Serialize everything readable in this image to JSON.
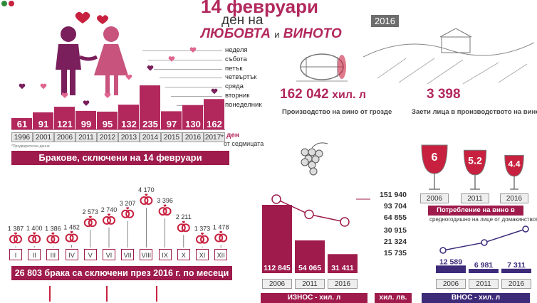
{
  "header": {
    "title_line1": "14 февруари",
    "title_line2": "ден на",
    "title_love": "ЛЮБОВТА",
    "title_and": "и",
    "title_wine": "ВИНОТО",
    "year_badge": "2016"
  },
  "weekdays": [
    "неделя",
    "събота",
    "петък",
    "четвъртък",
    "сряда",
    "вторник",
    "понеделник"
  ],
  "marriages_note": "*Предварителни данни",
  "marriages_den": "ден",
  "marriages_den_sub": "от седмицата",
  "marriages_band": "Бракове, сключени на 14 февруари",
  "monthly_band": "26 803 брака са сключени през 2016 г. по месеци",
  "wine": {
    "production_value": "162 042",
    "production_unit": "хил. л",
    "production_caption": "Производство на вино от грозде",
    "employed_value": "3 398",
    "employed_caption": "Заети лица в производството на вино",
    "consumption_band": "Потребление на вино в литри",
    "consumption_sub": "средногодишно на лице от домакинството",
    "export_band": "ИЗНОС - хил. л",
    "currency_band": "хил. лв.",
    "import_band": "ВНОС - хил. л"
  },
  "chart_data": [
    {
      "type": "bar",
      "title": "Бракове, сключени на 14 февруари",
      "categories": [
        "1996",
        "2001",
        "2006",
        "2011",
        "2012",
        "2013",
        "2014",
        "2015",
        "2016",
        "2017*"
      ],
      "values": [
        61,
        91,
        121,
        99,
        95,
        132,
        235,
        97,
        130,
        162
      ],
      "weekday_of_feb14": [
        "сряда",
        "сряда",
        "вторник",
        "понеделник",
        "вторник",
        "четвъртък",
        "петък",
        "събота",
        "неделя",
        "вторник"
      ],
      "xlabel": "",
      "ylabel": "",
      "colors": {
        "bar": "#b2285d",
        "dot": "#e0658f",
        "dot_dark": "#7a1f5c"
      }
    },
    {
      "type": "bar",
      "title": "26 803 брака са сключени през 2016 г. по месеци",
      "categories": [
        "I",
        "II",
        "III",
        "IV",
        "V",
        "VI",
        "VII",
        "VIII",
        "IX",
        "X",
        "XI",
        "XII"
      ],
      "values": [
        1387,
        1400,
        1386,
        1482,
        2573,
        2740,
        3207,
        4170,
        3396,
        2211,
        1373,
        1478
      ],
      "colors": {
        "ring": "#c8213f",
        "line": "#666666"
      }
    },
    {
      "type": "bar",
      "title": "Потребление на вино в литри",
      "categories": [
        "2006",
        "2011",
        "2016"
      ],
      "values": [
        6,
        5.2,
        4.4
      ],
      "colors": {
        "wine": "#c8213f"
      }
    },
    {
      "type": "bar",
      "title": "ИЗНОС - хил. л",
      "categories": [
        "2006",
        "2011",
        "2016"
      ],
      "values": [
        112845,
        54065,
        31411
      ],
      "line_series": {
        "name": "хил. лв.",
        "values": [
          151940,
          93704,
          64855
        ]
      },
      "colors": {
        "bar": "#9e1b4b",
        "line": "#9e1b4b"
      }
    },
    {
      "type": "bar",
      "title": "ВНОС - хил. л",
      "categories": [
        "2006",
        "2011",
        "2016"
      ],
      "values": [
        12589,
        6981,
        7311
      ],
      "line_series": {
        "name": "хил. лв.",
        "values": [
          15735,
          21324,
          30915
        ]
      },
      "colors": {
        "bar": "#3d2b7a",
        "line": "#3d2b7a"
      }
    }
  ],
  "axis_labels": {
    "export_money": [
      "151 940",
      "93 704",
      "64 855"
    ],
    "import_money": [
      "30 915",
      "21 324",
      "15 735"
    ]
  },
  "consumption_labels": [
    "6",
    "5.2",
    "4.4"
  ]
}
